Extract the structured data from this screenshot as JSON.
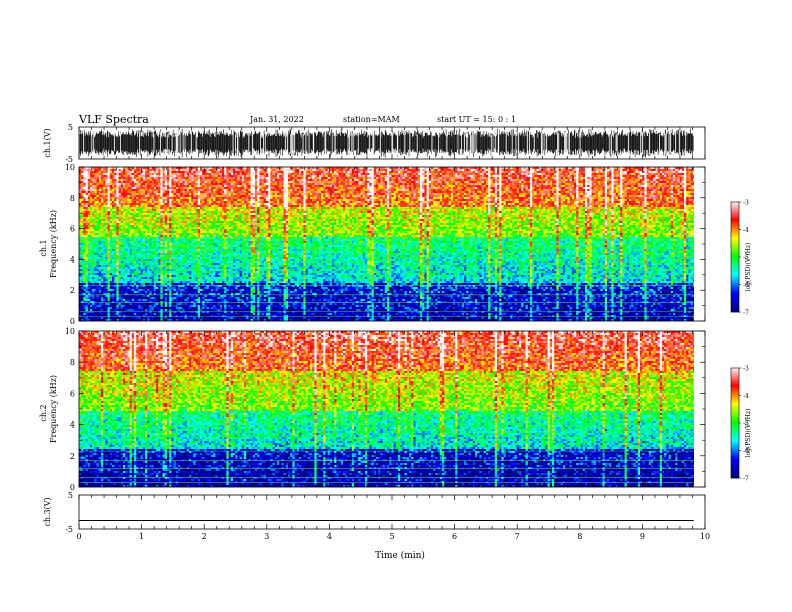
{
  "header": {
    "title": "VLF Spectra",
    "date": "Jan. 31, 2022",
    "station": "station=MAM",
    "start": "start  UT =  15: 0  : 1"
  },
  "chart_data": [
    {
      "type": "line",
      "panel": "ch1-waveform",
      "ylabel": "ch.1(V)",
      "ylim": [
        -5,
        5
      ],
      "yticks": [
        "5",
        "-5"
      ],
      "xlim": [
        0,
        10
      ],
      "description_values": {
        "waveform": "dense bursts reaching the ±5 V limits across 0–9.8 min"
      }
    },
    {
      "type": "heatmap",
      "panel": "ch1-spectrogram",
      "ylabel_top": "ch.1",
      "ylabel": "Frequency (kHz)",
      "ylim": [
        0,
        10
      ],
      "yticks": [
        "0",
        "2",
        "4",
        "6",
        "8",
        "10"
      ],
      "xlim": [
        0,
        10
      ],
      "colorbar": {
        "label": "log(PSD)(V²/Hz)",
        "range": [
          -7,
          -3
        ],
        "ticks": [
          "-3",
          "-4",
          "-5",
          "-6",
          "-7"
        ]
      },
      "colorscale": [
        "#00007f",
        "#0000ff",
        "#00ffff",
        "#00ff00",
        "#ffff00",
        "#ff0000",
        "#ffffff"
      ],
      "bands_kHz_to_logPSD": [
        {
          "f": [
            0,
            2.5
          ],
          "logpsd": -6.2
        },
        {
          "f": [
            2.5,
            5.5
          ],
          "logpsd": -5.4
        },
        {
          "f": [
            5.5,
            7.5
          ],
          "logpsd": -4.5
        },
        {
          "f": [
            7.5,
            10
          ],
          "logpsd": -3.6
        }
      ]
    },
    {
      "type": "heatmap",
      "panel": "ch2-spectrogram",
      "ylabel_top": "ch.2",
      "ylabel": "Frequency (kHz)",
      "ylim": [
        0,
        10
      ],
      "yticks": [
        "0",
        "2",
        "4",
        "6",
        "8",
        "10"
      ],
      "xlim": [
        0,
        10
      ],
      "colorbar": {
        "label": "log(PSD)(V²/Hz)",
        "range": [
          -7,
          -3
        ],
        "ticks": [
          "-3",
          "-4",
          "-5",
          "-6",
          "-7"
        ]
      },
      "colorscale": [
        "#00007f",
        "#0000ff",
        "#00ffff",
        "#00ff00",
        "#ffff00",
        "#ff0000",
        "#ffffff"
      ],
      "bands_kHz_to_logPSD": [
        {
          "f": [
            0,
            2.5
          ],
          "logpsd": -6.4
        },
        {
          "f": [
            2.5,
            5.0
          ],
          "logpsd": -5.3
        },
        {
          "f": [
            5.0,
            7.5
          ],
          "logpsd": -4.4
        },
        {
          "f": [
            7.5,
            10
          ],
          "logpsd": -3.5
        }
      ]
    },
    {
      "type": "line",
      "panel": "ch3-waveform",
      "ylabel": "ch.3(V)",
      "ylim": [
        -5,
        5
      ],
      "yticks": [
        "5",
        "-5"
      ],
      "xlim": [
        0,
        10
      ],
      "xlabel": "Time (min)",
      "xticks": [
        "0",
        "1",
        "2",
        "3",
        "4",
        "5",
        "6",
        "7",
        "8",
        "9",
        "10"
      ],
      "values": {
        "constant_V": -2.5
      }
    }
  ]
}
